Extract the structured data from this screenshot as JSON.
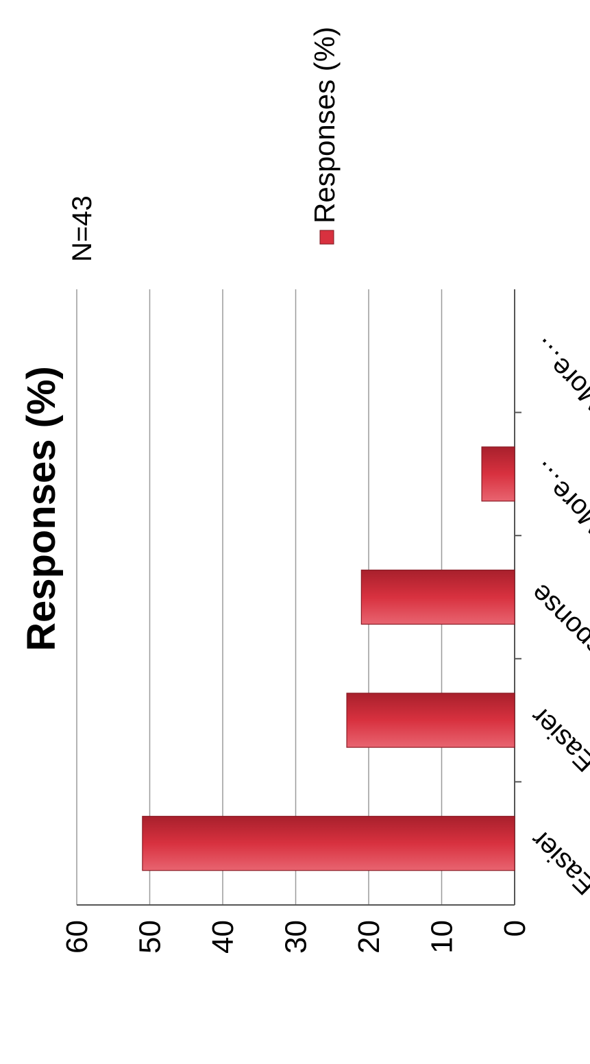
{
  "chart_data": {
    "type": "bar",
    "title": "Responses (%)",
    "annotation": "N=43",
    "categories": [
      "Significantly Easier",
      "Somewhat Easier",
      "Neutral/No Response",
      "Somewhat More…",
      "Significantly More…"
    ],
    "series": [
      {
        "name": "Responses (%)",
        "values": [
          51,
          23,
          21,
          4.5,
          0
        ]
      }
    ],
    "ylim": [
      0,
      60
    ],
    "yticks": [
      0,
      10,
      20,
      30,
      40,
      50,
      60
    ],
    "grid": true,
    "legend": "right",
    "colors": {
      "bar": "#d8313f",
      "bar_dark": "#a8202c",
      "bar_light": "#e86470"
    }
  }
}
